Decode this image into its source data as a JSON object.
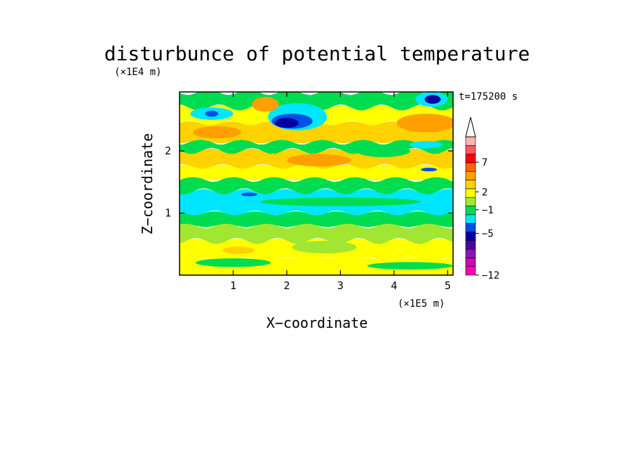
{
  "chart_data": {
    "type": "heatmap",
    "title": "disturbunce of potential temperature",
    "xlabel": "X−coordinate",
    "ylabel": "Z−coordinate",
    "x_unit": "(×1E5 m)",
    "y_unit": "(×1E4 m)",
    "time_label": "t=175200 s",
    "xlim": [
      0,
      5.1
    ],
    "ylim": [
      0,
      2.95
    ],
    "x_ticks": [
      {
        "value": 1,
        "label": "1"
      },
      {
        "value": 2,
        "label": "2"
      },
      {
        "value": 3,
        "label": "3"
      },
      {
        "value": 4,
        "label": "4"
      },
      {
        "value": 5,
        "label": "5"
      }
    ],
    "y_ticks": [
      {
        "value": 1,
        "label": "1"
      },
      {
        "value": 2,
        "label": "2"
      }
    ],
    "colorbar": {
      "levels": [
        -12,
        -5,
        -1,
        2,
        7
      ],
      "labels": [
        "−12",
        "−5",
        "−1",
        "2",
        "7"
      ],
      "colors": [
        "#ff00b4",
        "#c80ab4",
        "#8c14b4",
        "#5000a0",
        "#0000a0",
        "#0050e6",
        "#00e6ff",
        "#00dc50",
        "#a0e632",
        "#ffff00",
        "#ffd200",
        "#ffa000",
        "#ff6400",
        "#ff0000",
        "#ff5a5a",
        "#ffb4b4"
      ],
      "extend": "max"
    },
    "layers": [
      {
        "z_min": 0.0,
        "z_max": 0.25,
        "color": "#ffff00"
      },
      {
        "z_min": 0.25,
        "z_max": 0.55,
        "color": "#ffff00"
      },
      {
        "z_min": 0.55,
        "z_max": 0.8,
        "color": "#a0e632"
      },
      {
        "z_min": 0.8,
        "z_max": 1.0,
        "color": "#00dc50"
      },
      {
        "z_min": 1.0,
        "z_max": 1.35,
        "color": "#00e6ff"
      },
      {
        "z_min": 1.35,
        "z_max": 1.55,
        "color": "#00dc50"
      },
      {
        "z_min": 1.55,
        "z_max": 1.75,
        "color": "#ffff00"
      },
      {
        "z_min": 1.75,
        "z_max": 2.0,
        "color": "#ffd200"
      },
      {
        "z_min": 2.0,
        "z_max": 2.15,
        "color": "#00dc50"
      },
      {
        "z_min": 2.15,
        "z_max": 2.45,
        "color": "#ffd200"
      },
      {
        "z_min": 2.45,
        "z_max": 2.7,
        "color": "#ffff00"
      },
      {
        "z_min": 2.7,
        "z_max": 2.95,
        "color": "#00dc50"
      }
    ],
    "features": [
      {
        "x": 2.2,
        "z": 2.55,
        "rx": 0.55,
        "rz": 0.22,
        "color": "#00e6ff"
      },
      {
        "x": 2.1,
        "z": 2.48,
        "rx": 0.38,
        "rz": 0.12,
        "color": "#0050e6"
      },
      {
        "x": 2.0,
        "z": 2.45,
        "rx": 0.22,
        "rz": 0.08,
        "color": "#0000a0"
      },
      {
        "x": 0.7,
        "z": 2.3,
        "rx": 0.45,
        "rz": 0.1,
        "color": "#ffa000"
      },
      {
        "x": 0.6,
        "z": 2.6,
        "rx": 0.4,
        "rz": 0.1,
        "color": "#00e6ff"
      },
      {
        "x": 0.6,
        "z": 2.6,
        "rx": 0.12,
        "rz": 0.05,
        "color": "#0050e6"
      },
      {
        "x": 1.6,
        "z": 2.75,
        "rx": 0.25,
        "rz": 0.12,
        "color": "#ffa000"
      },
      {
        "x": 4.6,
        "z": 2.45,
        "rx": 0.55,
        "rz": 0.15,
        "color": "#ffa000"
      },
      {
        "x": 4.7,
        "z": 2.83,
        "rx": 0.3,
        "rz": 0.12,
        "color": "#00e6ff"
      },
      {
        "x": 4.72,
        "z": 2.83,
        "rx": 0.15,
        "rz": 0.07,
        "color": "#0000a0"
      },
      {
        "x": 4.6,
        "z": 2.1,
        "rx": 0.3,
        "rz": 0.06,
        "color": "#00e6ff"
      },
      {
        "x": 4.65,
        "z": 1.7,
        "rx": 0.15,
        "rz": 0.03,
        "color": "#0050e6"
      },
      {
        "x": 2.6,
        "z": 1.85,
        "rx": 0.6,
        "rz": 0.1,
        "color": "#ffa000"
      },
      {
        "x": 3.8,
        "z": 2.0,
        "rx": 0.5,
        "rz": 0.1,
        "color": "#00dc50"
      },
      {
        "x": 1.3,
        "z": 1.3,
        "rx": 0.15,
        "rz": 0.03,
        "color": "#0050e6"
      },
      {
        "x": 3.0,
        "z": 1.18,
        "rx": 1.5,
        "rz": 0.07,
        "color": "#00dc50"
      },
      {
        "x": 2.7,
        "z": 0.45,
        "rx": 0.6,
        "rz": 0.1,
        "color": "#a0e632"
      },
      {
        "x": 1.0,
        "z": 0.2,
        "rx": 0.7,
        "rz": 0.07,
        "color": "#00dc50"
      },
      {
        "x": 4.3,
        "z": 0.15,
        "rx": 0.8,
        "rz": 0.06,
        "color": "#00dc50"
      },
      {
        "x": 1.1,
        "z": 0.4,
        "rx": 0.3,
        "rz": 0.06,
        "color": "#ffd200"
      }
    ]
  }
}
